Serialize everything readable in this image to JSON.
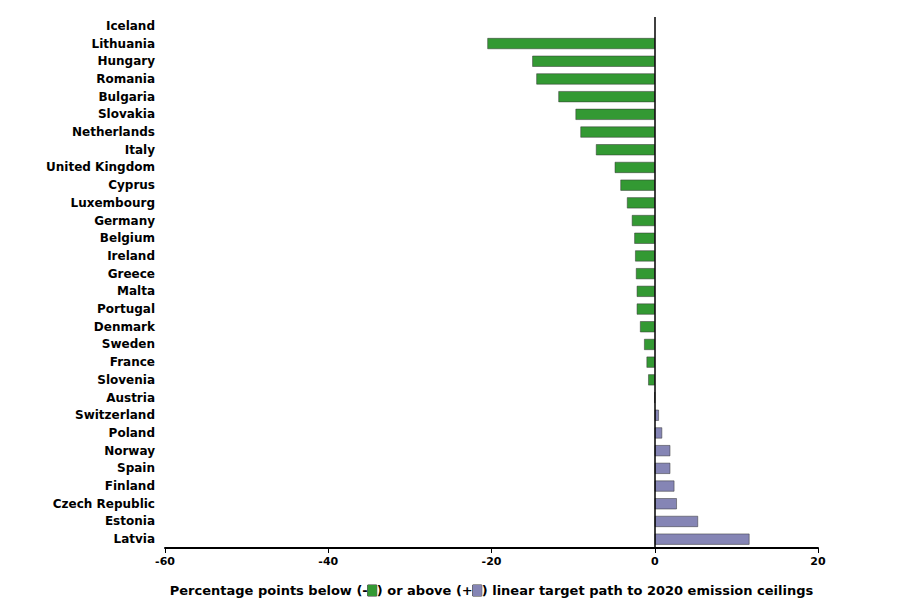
{
  "chart_data": {
    "type": "bar",
    "orientation": "horizontal",
    "xlabel": "Percentage points below (-) or above (+) linear target path to 2020 emission ceilings",
    "categories": [
      "Iceland",
      "Lithuania",
      "Hungary",
      "Romania",
      "Bulgaria",
      "Slovakia",
      "Netherlands",
      "Italy",
      "United Kingdom",
      "Cyprus",
      "Luxembourg",
      "Germany",
      "Belgium",
      "Ireland",
      "Greece",
      "Malta",
      "Portugal",
      "Denmark",
      "Sweden",
      "France",
      "Slovenia",
      "Austria",
      "Switzerland",
      "Poland",
      "Norway",
      "Spain",
      "Finland",
      "Czech Republic",
      "Estonia",
      "Latvia"
    ],
    "values": [
      null,
      -20.5,
      -15,
      -14.5,
      -11.8,
      -9.7,
      -9.1,
      -7.2,
      -4.9,
      -4.2,
      -3.4,
      -2.8,
      -2.5,
      -2.4,
      -2.3,
      -2.2,
      -2.2,
      -1.8,
      -1.3,
      -1.0,
      -0.8,
      0,
      0.5,
      0.9,
      1.9,
      1.9,
      2.4,
      2.7,
      5.3,
      11.6
    ],
    "colors": [
      "#339933",
      "#339933",
      "#339933",
      "#339933",
      "#339933",
      "#339933",
      "#339933",
      "#339933",
      "#339933",
      "#339933",
      "#339933",
      "#339933",
      "#339933",
      "#339933",
      "#339933",
      "#339933",
      "#339933",
      "#339933",
      "#339933",
      "#339933",
      "#339933",
      "#339933",
      "#8585b5",
      "#8585b5",
      "#8585b5",
      "#8585b5",
      "#8585b5",
      "#8585b5",
      "#8585b5",
      "#8585b5"
    ],
    "xlim": [
      -60,
      20
    ],
    "xticks": [
      -60,
      -40,
      -20,
      0,
      20
    ],
    "grid": false
  }
}
